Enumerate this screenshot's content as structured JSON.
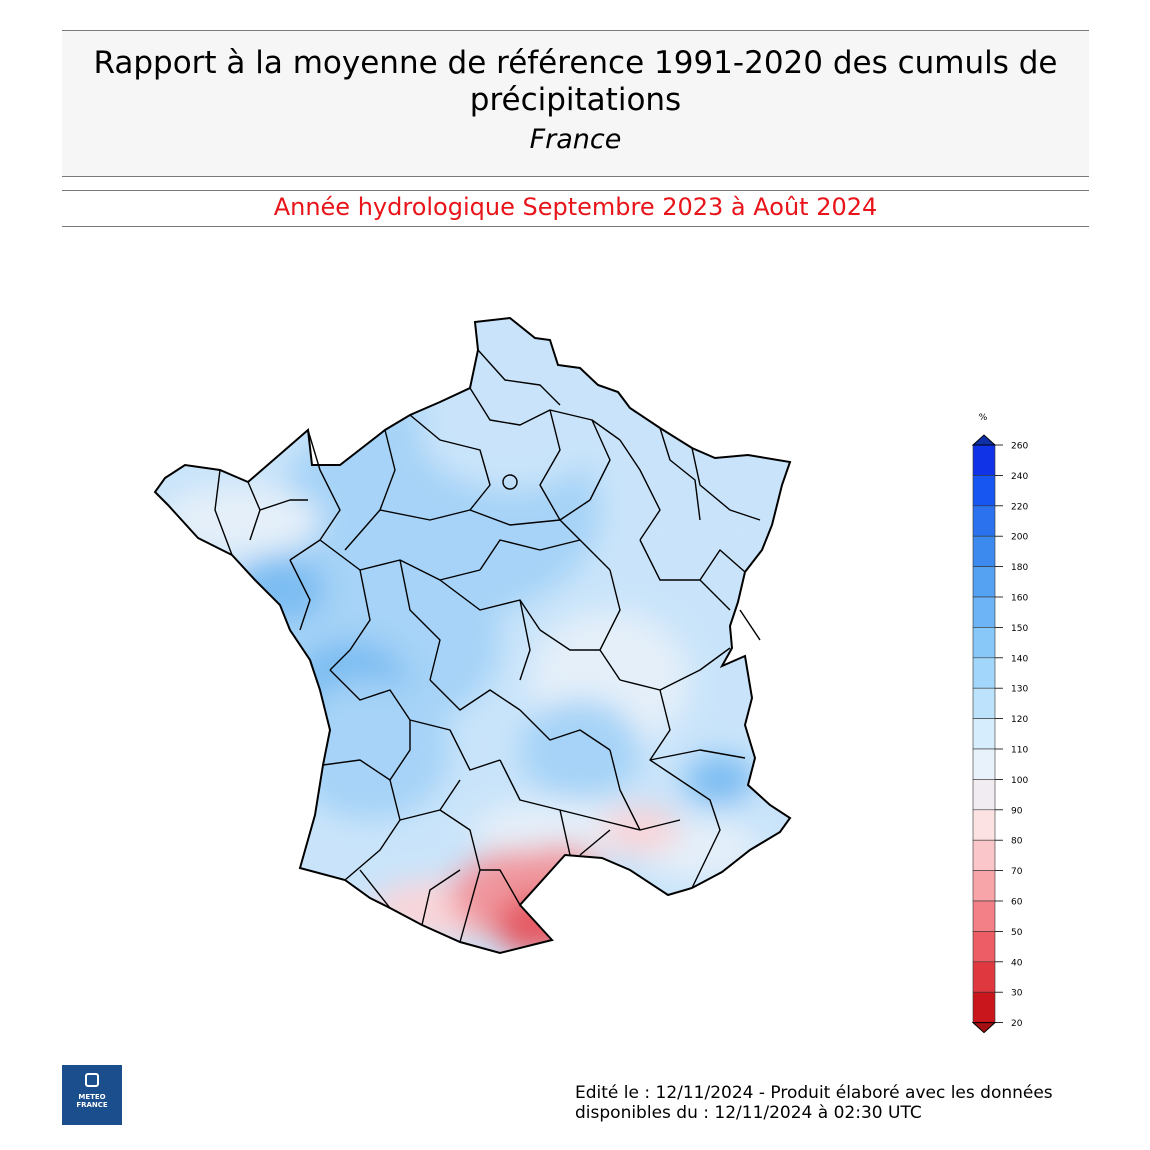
{
  "header": {
    "title_line1": "Rapport à la moyenne de référence 1991-2020 des cumuls de",
    "title_line2": "précipitations",
    "subtitle": "France"
  },
  "period": "Année hydrologique  Septembre 2023 à Août 2024",
  "legend": {
    "unit": "%",
    "ticks": [
      "260",
      "240",
      "220",
      "200",
      "180",
      "160",
      "150",
      "140",
      "130",
      "120",
      "110",
      "100",
      "90",
      "80",
      "70",
      "60",
      "50",
      "40",
      "30",
      "20"
    ],
    "colors": [
      "#1033e8",
      "#1756f0",
      "#2a72ee",
      "#3d8aee",
      "#55a2f2",
      "#6cb4f5",
      "#88c8f8",
      "#a2d6fa",
      "#bce3fb",
      "#d5edfc",
      "#e8f2fb",
      "#f1ecf2",
      "#fde2e4",
      "#fbc6c9",
      "#f8a5aa",
      "#f28086",
      "#ec5d65",
      "#e0383f",
      "#c8161c"
    ],
    "top_color": "#0e2fa8",
    "bottom_color": "#a50f12"
  },
  "map_colors": {
    "wet_strong": "#7dbdf2",
    "wet": "#a6d3f7",
    "wet_light": "#c9e4fa",
    "normal": "#e4eff9",
    "dry_light": "#f8d6da",
    "dry": "#f0969d",
    "dry_strong": "#e55a63"
  },
  "logo": {
    "line1": "METEO",
    "line2": "FRANCE"
  },
  "footer": {
    "line1": "Edité le : 12/11/2024 - Produit élaboré avec les données",
    "line2": "disponibles du : 12/11/2024 à 02:30 UTC"
  }
}
